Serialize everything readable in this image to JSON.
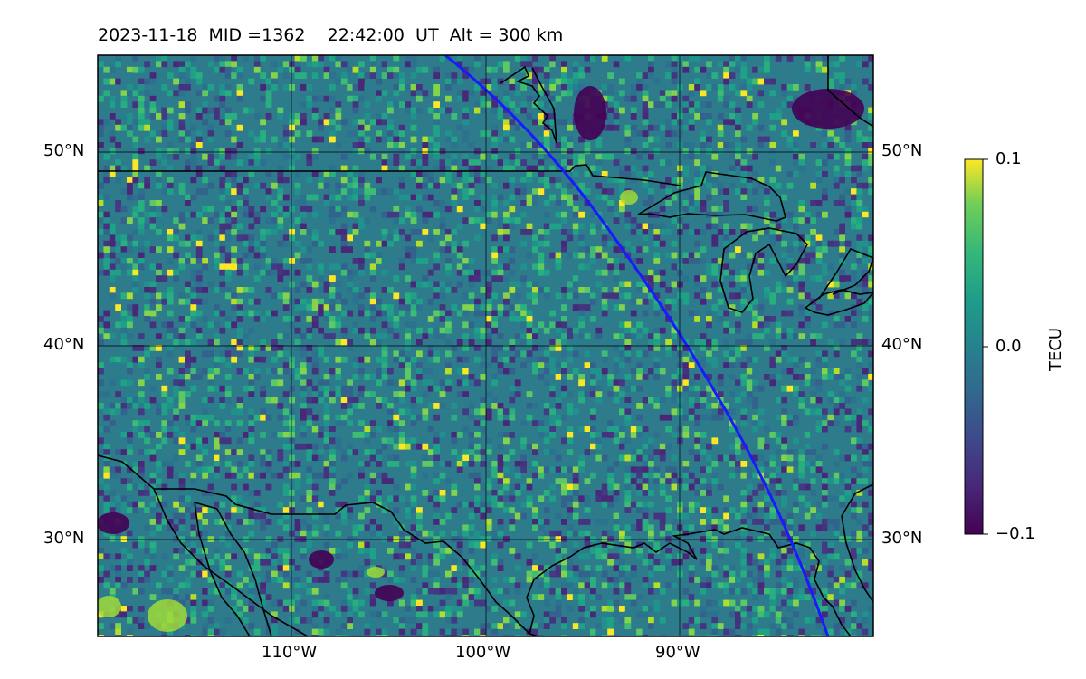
{
  "title": {
    "date": "2023-11-18",
    "mid": "MID =1362",
    "time": "22:42:00  UT",
    "alt": "Alt = 300 km"
  },
  "map": {
    "lat_labels": [
      "50°N",
      "40°N",
      "30°N"
    ],
    "lon_labels": [
      "110°W",
      "100°W",
      "90°W"
    ],
    "lat_values": [
      50,
      40,
      30
    ],
    "lon_values": [
      -110,
      -100,
      -90
    ],
    "extent": {
      "lon_min": -120,
      "lon_max": -80,
      "lat_min": 25,
      "lat_max": 55
    }
  },
  "colorbar": {
    "label": "TECU",
    "ticks": [
      "0.1",
      "0.0",
      "−0.1"
    ],
    "min": -0.1,
    "max": 0.1,
    "colormap": "viridis"
  },
  "overlay": {
    "satellite_track_color": "#1a1aff",
    "coastline_color": "#000000"
  }
}
